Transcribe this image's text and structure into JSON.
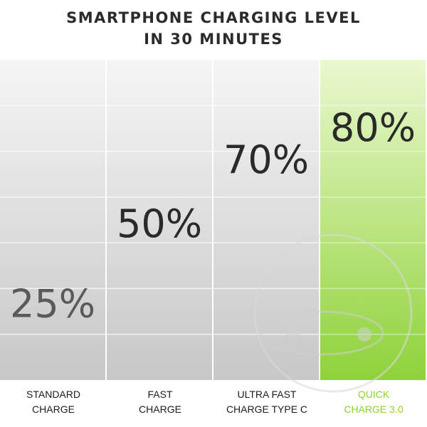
{
  "chart_data": {
    "type": "bar",
    "title_lines": [
      "SMARTPHONE CHARGING LEVEL",
      "IN 30 MINUTES"
    ],
    "categories": [
      [
        "STANDARD",
        "CHARGE"
      ],
      [
        "FAST",
        "CHARGE"
      ],
      [
        "ULTRA FAST",
        "CHARGE TYPE C"
      ],
      [
        "QUICK",
        "CHARGE 3.0"
      ]
    ],
    "values": [
      25,
      50,
      70,
      80
    ],
    "value_labels": [
      "25%",
      "50%",
      "70%",
      "80%"
    ],
    "highlight_index": 3,
    "unit": "%",
    "ylim": [
      0,
      100
    ],
    "colors": {
      "title": "#2b2b2b",
      "value_text": "#2a2a2a",
      "value_text_light": "#5a5a5a",
      "highlight_text": "#8cd12c",
      "highlight_top": "#eaf8cf",
      "highlight_bottom": "#8fd23a",
      "gray_top": "#f5f5f5",
      "gray_bottom": "#c7c7c7"
    }
  }
}
